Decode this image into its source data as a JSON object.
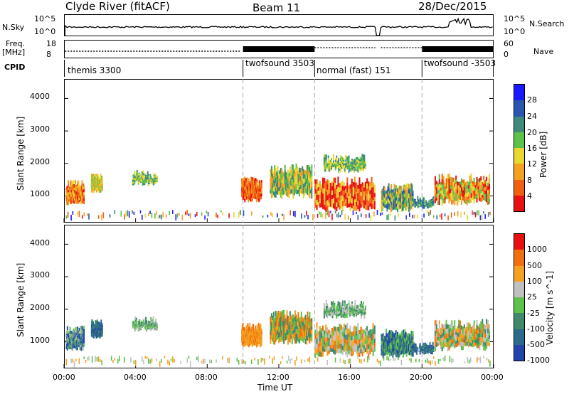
{
  "header": {
    "station": "Clyde River (fitACF)",
    "beam": "Beam 11",
    "date": "28/Dec/2015"
  },
  "top_panels": {
    "nsky_label": "N.Sky",
    "nsky_max": "10^5",
    "nsky_min": "10^0",
    "nsearch_label": "N.Search",
    "freq_label": "Freq.",
    "freq_unit": "[MHz]",
    "freq_max": "18",
    "freq_min": "8",
    "nave_label": "Nave",
    "nave_max": "60",
    "nave_min": "0",
    "cpid_label": "CPID",
    "cpid_segments": [
      {
        "label": "themis 3300",
        "start_hour": 0
      },
      {
        "label": "twofsound 3503",
        "start_hour": 10
      },
      {
        "label": "normal (fast) 151",
        "start_hour": 14
      },
      {
        "label": "twofsound -3503",
        "start_hour": 20
      }
    ]
  },
  "chart_data": [
    {
      "type": "heatmap",
      "title": "",
      "xlabel": "",
      "ylabel": "Slant Range [km]",
      "xlim_hours": [
        0,
        24
      ],
      "ylim": [
        180,
        4600
      ],
      "yticks": [
        1000,
        2000,
        3000,
        4000
      ],
      "colorbar_label": "Power [dB]",
      "colorbar_ticks": [
        4,
        8,
        12,
        16,
        20,
        24,
        28
      ],
      "colorbar_range": [
        0,
        32
      ],
      "colors": [
        "#1a1aff",
        "#2a55b0",
        "#3f8a7a",
        "#5cc24a",
        "#e8d830",
        "#f5a020",
        "#f06010",
        "#e81010"
      ],
      "mode_change_hours": [
        10,
        14,
        20
      ]
    },
    {
      "type": "heatmap",
      "title": "",
      "xlabel": "Time UT",
      "ylabel": "Slant Range [km]",
      "xlim_hours": [
        0,
        24
      ],
      "ylim": [
        180,
        4600
      ],
      "yticks": [
        1000,
        2000,
        3000,
        4000
      ],
      "colorbar_label": "Velocity [m s^-1]",
      "colorbar_ticks": [
        1000,
        500,
        100,
        25,
        -25,
        -100,
        -500,
        -1000
      ],
      "colors": [
        "#2244aa",
        "#2a6a8a",
        "#3f8a6a",
        "#5cc24a",
        "#c0c0c0",
        "#f5a020",
        "#f07010",
        "#e81010"
      ],
      "mode_change_hours": [
        10,
        14,
        20
      ]
    }
  ],
  "time_axis": {
    "label": "Time UT",
    "ticks": [
      "00:00",
      "04:00",
      "08:00",
      "12:00",
      "16:00",
      "20:00",
      "00:00"
    ]
  }
}
